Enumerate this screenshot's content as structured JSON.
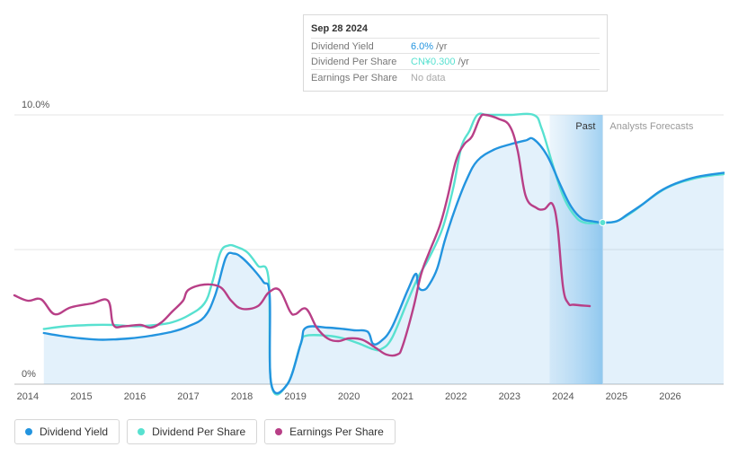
{
  "tooltip": {
    "date": "Sep 28 2024",
    "rows": [
      {
        "label": "Dividend Yield",
        "value": "6.0%",
        "unit": "/yr",
        "color": "#2394df"
      },
      {
        "label": "Dividend Per Share",
        "value": "CN¥0.300",
        "unit": "/yr",
        "color": "#58e1d0"
      },
      {
        "label": "Earnings Per Share",
        "value": "No data",
        "unit": "",
        "color": "#aaaaaa"
      }
    ]
  },
  "regions": {
    "past_label": "Past",
    "forecast_label": "Analysts Forecasts"
  },
  "legend": [
    {
      "label": "Dividend Yield",
      "color": "#2394df"
    },
    {
      "label": "Dividend Per Share",
      "color": "#58e1d0"
    },
    {
      "label": "Earnings Per Share",
      "color": "#b83f87"
    }
  ],
  "chart_data": {
    "type": "line",
    "y_tick_labels": [
      "10.0%",
      "0%"
    ],
    "ylim": [
      0,
      10
    ],
    "xlim": [
      2013.75,
      2027.0
    ],
    "x_tick_labels": [
      "2014",
      "2015",
      "2016",
      "2017",
      "2018",
      "2019",
      "2020",
      "2021",
      "2022",
      "2023",
      "2024",
      "2025",
      "2026"
    ],
    "grid": true,
    "past_start": 2023.75,
    "past_end": 2024.74,
    "series": [
      {
        "name": "Dividend Yield",
        "color": "#2394df",
        "x": [
          2014.3,
          2014.6,
          2015.0,
          2015.4,
          2015.9,
          2016.3,
          2016.7,
          2017.0,
          2017.3,
          2017.5,
          2017.7,
          2017.85,
          2018.0,
          2018.2,
          2018.4,
          2018.52,
          2018.55,
          2018.85,
          2019.1,
          2019.2,
          2019.6,
          2019.9,
          2020.1,
          2020.35,
          2020.45,
          2020.6,
          2020.8,
          2021.1,
          2021.25,
          2021.3,
          2021.4,
          2021.5,
          2021.65,
          2021.8,
          2022.0,
          2022.2,
          2022.4,
          2022.7,
          2023.0,
          2023.3,
          2023.45,
          2023.7,
          2023.95,
          2024.15,
          2024.35,
          2024.55,
          2024.74,
          2025.0,
          2025.2,
          2025.5,
          2025.8,
          2026.1,
          2026.5,
          2027.0
        ],
        "y": [
          1.9,
          1.8,
          1.7,
          1.65,
          1.7,
          1.8,
          1.95,
          2.15,
          2.5,
          3.3,
          4.7,
          4.85,
          4.7,
          4.3,
          3.8,
          3.3,
          0.0,
          0.0,
          1.5,
          2.1,
          2.1,
          2.05,
          2.0,
          1.95,
          1.5,
          1.6,
          2.1,
          3.5,
          4.1,
          3.6,
          3.5,
          3.7,
          4.3,
          5.4,
          6.6,
          7.6,
          8.3,
          8.7,
          8.9,
          9.05,
          9.1,
          8.5,
          7.4,
          6.6,
          6.15,
          6.05,
          6.0,
          6.05,
          6.3,
          6.7,
          7.15,
          7.45,
          7.7,
          7.85
        ]
      },
      {
        "name": "Dividend Per Share",
        "color": "#58e1d0",
        "x": [
          2014.3,
          2014.7,
          2015.2,
          2015.6,
          2016.0,
          2016.4,
          2016.7,
          2017.0,
          2017.3,
          2017.45,
          2017.6,
          2017.75,
          2017.9,
          2018.1,
          2018.3,
          2018.5,
          2018.55,
          2018.85,
          2019.1,
          2019.2,
          2019.6,
          2019.9,
          2020.2,
          2020.45,
          2020.6,
          2020.8,
          2021.1,
          2021.3,
          2021.5,
          2021.75,
          2021.95,
          2022.1,
          2022.25,
          2022.4,
          2022.6,
          2023.0,
          2023.45,
          2023.6,
          2023.8,
          2024.0,
          2024.2,
          2024.4,
          2024.74,
          2025.0,
          2025.3,
          2025.6,
          2025.9,
          2026.2,
          2026.6,
          2027.0
        ],
        "y": [
          2.05,
          2.15,
          2.2,
          2.2,
          2.15,
          2.2,
          2.3,
          2.55,
          3.0,
          3.8,
          4.9,
          5.15,
          5.1,
          4.9,
          4.4,
          3.9,
          0.0,
          0.0,
          1.5,
          1.8,
          1.8,
          1.7,
          1.5,
          1.3,
          1.3,
          1.7,
          3.1,
          4.0,
          4.7,
          5.8,
          7.3,
          8.8,
          9.4,
          10.0,
          10.0,
          10.0,
          10.0,
          9.5,
          8.2,
          7.0,
          6.3,
          6.0,
          6.0,
          6.05,
          6.4,
          6.85,
          7.25,
          7.5,
          7.7,
          7.8
        ]
      },
      {
        "name": "Earnings Per Share",
        "color": "#b83f87",
        "x": [
          2013.75,
          2014.0,
          2014.25,
          2014.5,
          2014.8,
          2015.2,
          2015.5,
          2015.6,
          2015.8,
          2016.1,
          2016.3,
          2016.5,
          2016.7,
          2016.9,
          2017.0,
          2017.3,
          2017.6,
          2017.8,
          2018.0,
          2018.3,
          2018.5,
          2018.7,
          2018.9,
          2019.0,
          2019.2,
          2019.4,
          2019.6,
          2019.8,
          2020.0,
          2020.25,
          2020.5,
          2020.7,
          2020.9,
          2021.0,
          2021.2,
          2021.35,
          2021.5,
          2021.7,
          2021.85,
          2022.0,
          2022.15,
          2022.3,
          2022.45,
          2022.55,
          2022.8,
          2023.0,
          2023.15,
          2023.3,
          2023.5,
          2023.65,
          2023.8,
          2023.9,
          2024.0,
          2024.1,
          2024.2,
          2024.5
        ],
        "y": [
          3.3,
          3.1,
          3.15,
          2.6,
          2.85,
          3.0,
          3.1,
          2.2,
          2.15,
          2.2,
          2.1,
          2.3,
          2.7,
          3.1,
          3.5,
          3.7,
          3.6,
          3.1,
          2.8,
          2.9,
          3.4,
          3.5,
          2.7,
          2.6,
          2.8,
          2.1,
          1.7,
          1.6,
          1.7,
          1.65,
          1.35,
          1.1,
          1.1,
          1.4,
          2.8,
          4.1,
          4.9,
          5.9,
          7.0,
          8.3,
          8.9,
          9.2,
          9.9,
          10.0,
          9.85,
          9.6,
          8.7,
          7.0,
          6.55,
          6.5,
          6.7,
          5.8,
          3.6,
          3.0,
          2.95,
          2.9
        ]
      }
    ]
  }
}
